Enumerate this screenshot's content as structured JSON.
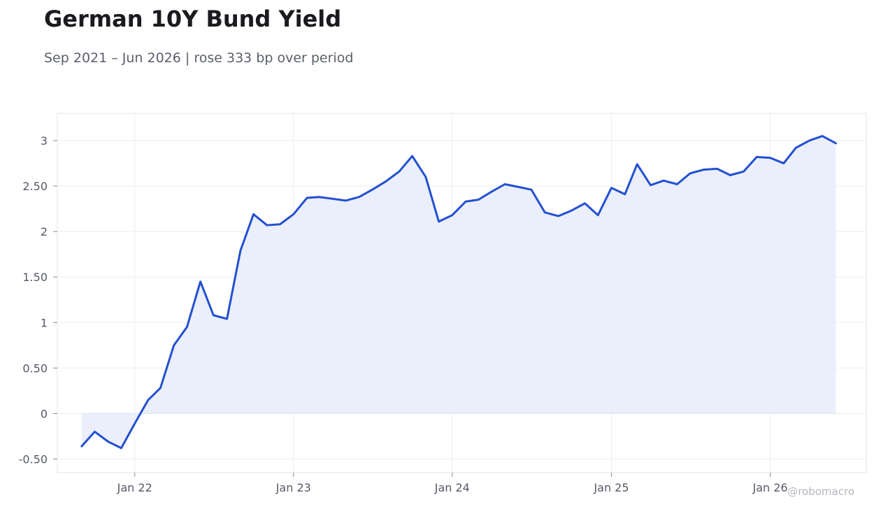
{
  "title": "German 10Y Bund Yield",
  "subtitle": "Sep 2021 – Jun 2026 | rose 333 bp over period",
  "watermark": "@robomacro",
  "colors": {
    "line": "#2350d0",
    "fill": "#eaeffb",
    "grid": "#eeeeee",
    "frame": "#e3e3e6",
    "tick_text": "#555a66"
  },
  "chart_data": {
    "type": "area",
    "title": "German 10Y Bund Yield",
    "subtitle": "Sep 2021 – Jun 2026 | rose 333 bp over period",
    "xlabel": "",
    "ylabel": "",
    "ylim": [
      -0.65,
      3.3
    ],
    "xlim": [
      "2021-07-07",
      "2026-08-10"
    ],
    "grid": true,
    "legend": false,
    "y_ticks": [
      -0.5,
      0,
      0.5,
      1,
      1.5,
      2,
      2.5,
      3
    ],
    "y_tick_labels": [
      "-0.50",
      "0",
      "0.50",
      "1",
      "1.50",
      "2",
      "2.50",
      "3"
    ],
    "x_ticks": [
      "2022-01-01",
      "2023-01-01",
      "2024-01-01",
      "2025-01-01",
      "2026-01-01"
    ],
    "x_tick_labels": [
      "Jan 22",
      "Jan 23",
      "Jan 24",
      "Jan 25",
      "Jan 26"
    ],
    "series": [
      {
        "x": [
          "2021-09-01",
          "2021-10-01",
          "2021-11-01",
          "2021-12-01",
          "2022-01-01",
          "2022-02-01",
          "2022-03-01",
          "2022-04-01",
          "2022-05-01",
          "2022-06-01",
          "2022-07-01",
          "2022-08-01",
          "2022-09-01",
          "2022-10-01",
          "2022-11-01",
          "2022-12-01",
          "2023-01-01",
          "2023-02-01",
          "2023-03-01",
          "2023-04-01",
          "2023-05-01",
          "2023-06-01",
          "2023-07-01",
          "2023-08-01",
          "2023-09-01",
          "2023-10-01",
          "2023-11-01",
          "2023-12-01",
          "2024-01-01",
          "2024-02-01",
          "2024-03-01",
          "2024-04-01",
          "2024-05-01",
          "2024-06-01",
          "2024-07-01",
          "2024-08-01",
          "2024-09-01",
          "2024-10-01",
          "2024-11-01",
          "2024-12-01",
          "2025-01-01",
          "2025-02-01",
          "2025-03-01",
          "2025-04-01",
          "2025-05-01",
          "2025-06-01",
          "2025-07-01",
          "2025-08-01",
          "2025-09-01",
          "2025-10-01",
          "2025-11-01",
          "2025-12-01",
          "2026-01-01",
          "2026-02-01",
          "2026-03-01",
          "2026-04-01",
          "2026-05-01",
          "2026-06-01"
        ],
        "values": [
          -0.36,
          -0.2,
          -0.31,
          -0.38,
          -0.11,
          0.15,
          0.28,
          0.75,
          0.95,
          1.45,
          1.08,
          1.04,
          1.79,
          2.19,
          2.07,
          2.08,
          2.19,
          2.37,
          2.38,
          2.36,
          2.34,
          2.38,
          2.46,
          2.55,
          2.66,
          2.83,
          2.6,
          2.11,
          2.18,
          2.33,
          2.35,
          2.44,
          2.52,
          2.49,
          2.46,
          2.21,
          2.17,
          2.23,
          2.31,
          2.18,
          2.48,
          2.41,
          2.74,
          2.51,
          2.56,
          2.52,
          2.64,
          2.68,
          2.69,
          2.62,
          2.66,
          2.82,
          2.81,
          2.75,
          2.92,
          3.0,
          3.05,
          2.97
        ]
      }
    ]
  }
}
